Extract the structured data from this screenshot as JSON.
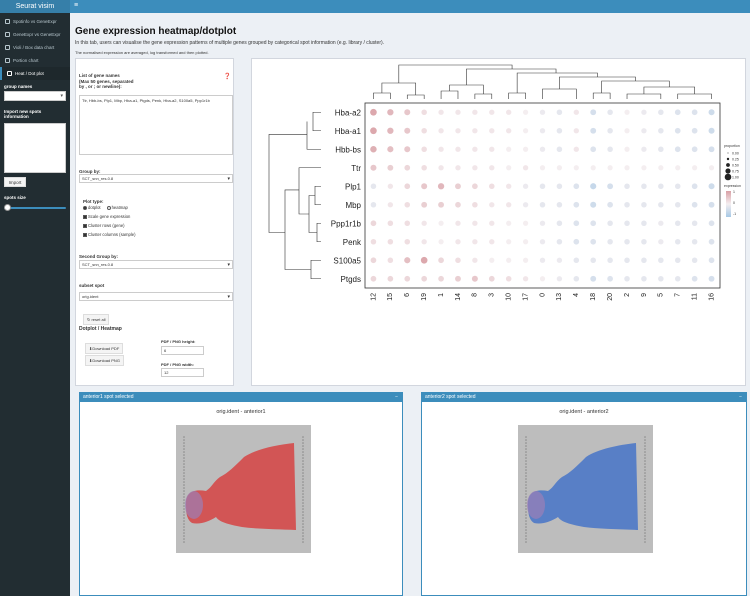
{
  "app": {
    "title": "Seurat visim"
  },
  "sidebar": {
    "items": [
      {
        "label": "Spotinfo vs GeneExpr",
        "active": false
      },
      {
        "label": "GeneExpr vs GeneExpr",
        "active": false
      },
      {
        "label": "Violi / Box data chart",
        "active": false
      },
      {
        "label": "Portion chart",
        "active": false
      },
      {
        "label": "Heat / Dot plot",
        "active": true
      }
    ],
    "group_names_label": "group names",
    "import_label": "Import new spots information",
    "import_button": "Import",
    "spots_size_label": "spots size",
    "spots_size_value": 0.0
  },
  "main": {
    "title": "Gene expression heatmap/dotplot",
    "description": "In this tab, users can visualise the gene expression patterns of multiple genes grouped by categorical spot information (e.g. library / cluster).",
    "note": "The normalised expression are averaged, log transformed and then plotted."
  },
  "controls": {
    "genes_label": "List of gene names\n(Max 50 genes, separated\nby , or ; or newline):",
    "genes_value": "Ttr, Hbb-bs, Plp1, Mbp, Hba-a1, Ptgds, Penk, Hba-a2, S100a5, Ppp1r1b",
    "group_by_label": "Group by:",
    "group_by_value": "SCT_snn_res.0.8",
    "plot_type_label": "Plot type:",
    "plot_types": [
      "dotplot",
      "heatmap"
    ],
    "plot_type_selected": "dotplot",
    "checkboxes": [
      "Scale gene expression",
      "Cluster rows (gene)",
      "Cluster columns (sample)"
    ],
    "second_group_label": "Second Group by:",
    "second_group_value": "SCT_snn_res.0.8",
    "subset_label": "subset spot",
    "subset_value": "orig.ident",
    "reset_label": "reset all",
    "download_title": "Dotplot / Heatmap",
    "download_pdf": "Download PDF",
    "download_png": "Download PNG",
    "height_label": "PDF / PNG height:",
    "height_value": "6",
    "width_label": "PDF / PNG width:",
    "width_value": "12"
  },
  "chart_data": {
    "type": "scatter",
    "genes": [
      "Hba-a2",
      "Hba-a1",
      "Hbb-bs",
      "Ttr",
      "Plp1",
      "Mbp",
      "Ppp1r1b",
      "Penk",
      "S100a5",
      "Ptgds"
    ],
    "clusters": [
      "12",
      "15",
      "6",
      "19",
      "1",
      "14",
      "8",
      "3",
      "10",
      "17",
      "0",
      "13",
      "4",
      "18",
      "20",
      "2",
      "9",
      "5",
      "7",
      "11",
      "16"
    ],
    "expression": [
      [
        0.9,
        0.7,
        0.5,
        0.2,
        0.1,
        0.1,
        0.1,
        0.1,
        0.1,
        0.0,
        -0.1,
        -0.2,
        0.1,
        -0.4,
        -0.2,
        0.0,
        -0.1,
        -0.2,
        -0.3,
        -0.3,
        -0.5
      ],
      [
        0.9,
        0.7,
        0.5,
        0.2,
        0.1,
        0.1,
        0.1,
        0.1,
        0.1,
        0.0,
        -0.1,
        -0.2,
        0.1,
        -0.4,
        -0.2,
        0.0,
        -0.1,
        -0.2,
        -0.3,
        -0.3,
        -0.5
      ],
      [
        0.8,
        0.6,
        0.5,
        0.2,
        0.1,
        0.1,
        0.1,
        0.1,
        0.0,
        0.0,
        -0.1,
        -0.2,
        0.1,
        -0.3,
        -0.2,
        0.0,
        -0.1,
        -0.2,
        -0.3,
        -0.3,
        -0.4
      ],
      [
        0.5,
        0.4,
        0.3,
        0.2,
        0.1,
        0.1,
        0.1,
        0.1,
        0.0,
        0.1,
        0.0,
        0.0,
        0.0,
        0.0,
        0.0,
        0.0,
        0.0,
        0.0,
        0.0,
        0.0,
        0.0
      ],
      [
        -0.2,
        0.1,
        0.3,
        0.5,
        0.7,
        0.4,
        0.3,
        0.2,
        0.1,
        -0.1,
        -0.2,
        -0.2,
        -0.3,
        -0.6,
        -0.4,
        -0.2,
        -0.2,
        -0.2,
        -0.2,
        -0.3,
        -0.5
      ],
      [
        -0.2,
        0.1,
        0.2,
        0.4,
        0.4,
        0.3,
        0.2,
        0.1,
        0.1,
        -0.1,
        -0.2,
        -0.2,
        -0.3,
        -0.5,
        -0.3,
        -0.2,
        -0.2,
        -0.2,
        -0.2,
        -0.3,
        -0.4
      ],
      [
        0.3,
        0.2,
        0.2,
        0.1,
        0.0,
        0.1,
        0.1,
        0.1,
        0.0,
        0.0,
        -0.1,
        -0.2,
        -0.3,
        -0.3,
        -0.2,
        -0.2,
        -0.2,
        -0.1,
        -0.2,
        -0.2,
        -0.3
      ],
      [
        0.2,
        0.2,
        0.2,
        0.1,
        0.0,
        0.1,
        0.1,
        0.1,
        0.0,
        0.0,
        -0.1,
        -0.2,
        -0.3,
        -0.3,
        -0.2,
        -0.2,
        -0.2,
        -0.1,
        -0.2,
        -0.2,
        -0.3
      ],
      [
        0.3,
        0.2,
        0.6,
        0.9,
        0.3,
        0.2,
        0.1,
        0.0,
        0.0,
        0.0,
        -0.1,
        -0.1,
        -0.2,
        -0.2,
        -0.2,
        -0.2,
        -0.2,
        -0.2,
        -0.2,
        -0.2,
        -0.3
      ],
      [
        0.3,
        0.3,
        0.3,
        0.3,
        0.3,
        0.4,
        0.5,
        0.3,
        0.2,
        0.1,
        0.0,
        -0.1,
        -0.2,
        -0.4,
        -0.3,
        -0.2,
        -0.2,
        -0.2,
        -0.2,
        -0.3,
        -0.4
      ]
    ],
    "legend_proportion_label": "proportion",
    "legend_proportion_ticks": [
      "0.00",
      "0.25",
      "0.50",
      "0.75",
      "1.00"
    ],
    "legend_expression_label": "expression",
    "legend_expression_ticks": [
      "1",
      "0",
      "-1"
    ],
    "colors": {
      "high": "#d9a0a5",
      "mid": "#f4eef0",
      "low": "#a7c9e6"
    }
  },
  "bottom_panels": [
    {
      "header": "anterior1 spot selected",
      "caption": "orig.ident - anterior1",
      "tissue_color": "#d44c4c"
    },
    {
      "header": "anterior2 spot selected",
      "caption": "orig.ident - anterior2",
      "tissue_color": "#4f79c7"
    }
  ]
}
